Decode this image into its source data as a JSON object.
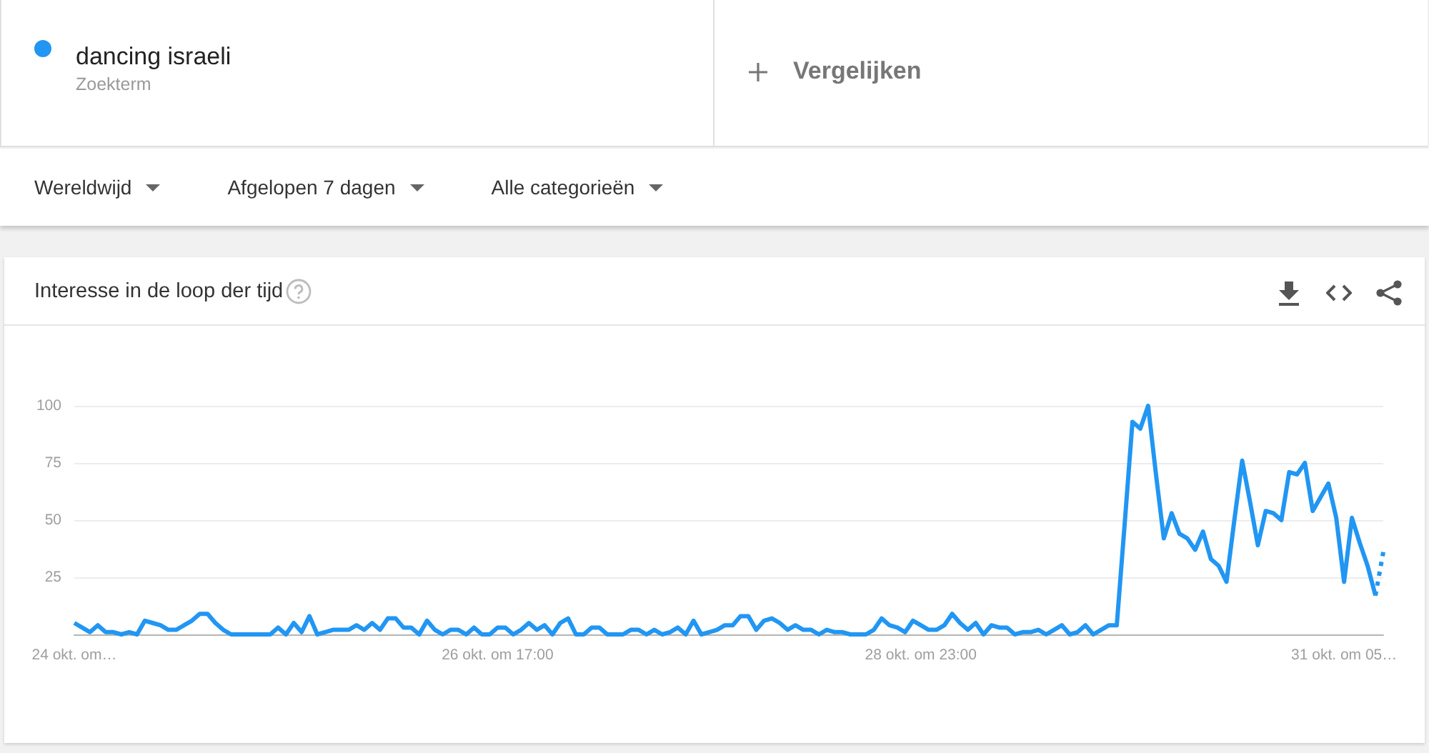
{
  "chart_data": {
    "type": "line",
    "title": "Interesse in de loop der tijd",
    "legend": "top left",
    "grid": "y",
    "marker": "none",
    "line_style": "solid",
    "annotations": [
      "Zoekterm",
      "Vergelijken",
      "Wereldwijd",
      "Afgelopen 7 dagen",
      "Alle categorieën"
    ],
    "ylim": [
      0,
      100
    ],
    "yticks": [
      25,
      50,
      75,
      100
    ],
    "categories": [
      "24 okt. om…",
      null,
      null,
      null,
      null,
      null,
      null,
      null,
      null,
      null,
      null,
      null,
      null,
      null,
      null,
      null,
      null,
      null,
      null,
      null,
      null,
      null,
      null,
      null,
      null,
      null,
      null,
      null,
      null,
      null,
      null,
      null,
      null,
      null,
      null,
      null,
      null,
      null,
      null,
      null,
      null,
      null,
      null,
      null,
      null,
      null,
      null,
      null,
      null,
      null,
      null,
      null,
      null,
      null,
      "26 okt. om 17:00",
      null,
      null,
      null,
      null,
      null,
      null,
      null,
      null,
      null,
      null,
      null,
      null,
      null,
      null,
      null,
      null,
      null,
      null,
      null,
      null,
      null,
      null,
      null,
      null,
      null,
      null,
      null,
      null,
      null,
      null,
      null,
      null,
      null,
      null,
      null,
      null,
      null,
      null,
      null,
      null,
      null,
      null,
      null,
      null,
      null,
      null,
      null,
      null,
      null,
      null,
      null,
      null,
      null,
      "28 okt. om 23:00",
      null,
      null,
      null,
      null,
      null,
      null,
      null,
      null,
      null,
      null,
      null,
      null,
      null,
      null,
      null,
      null,
      null,
      null,
      null,
      null,
      null,
      null,
      null,
      null,
      null,
      null,
      null,
      null,
      null,
      null,
      null,
      null,
      null,
      null,
      null,
      null,
      null,
      null,
      null,
      null,
      null,
      null,
      null,
      null,
      null,
      null,
      null,
      null,
      null,
      null,
      null,
      null,
      null,
      "31 okt. om 05…",
      null,
      null,
      null,
      null,
      null
    ],
    "series": [
      {
        "name": "dancing israeli",
        "color": "#2196f3",
        "values": [
          5,
          3,
          1,
          4,
          1,
          1,
          0,
          1,
          0,
          6,
          5,
          4,
          2,
          2,
          4,
          6,
          9,
          9,
          5,
          2,
          0,
          0,
          0,
          0,
          0,
          0,
          3,
          0,
          5,
          1,
          8,
          0,
          1,
          2,
          2,
          2,
          4,
          2,
          5,
          2,
          7,
          7,
          3,
          3,
          0,
          6,
          2,
          0,
          2,
          2,
          0,
          3,
          0,
          0,
          3,
          3,
          0,
          2,
          5,
          2,
          4,
          0,
          5,
          7,
          0,
          0,
          3,
          3,
          0,
          0,
          0,
          2,
          2,
          0,
          2,
          0,
          1,
          3,
          0,
          6,
          0,
          1,
          2,
          4,
          4,
          8,
          8,
          2,
          6,
          7,
          5,
          2,
          4,
          2,
          2,
          0,
          2,
          1,
          1,
          0,
          0,
          0,
          2,
          7,
          4,
          3,
          1,
          6,
          4,
          2,
          2,
          4,
          9,
          5,
          2,
          5,
          0,
          4,
          3,
          3,
          0,
          1,
          1,
          2,
          0,
          2,
          4,
          0,
          1,
          4,
          0,
          2,
          4,
          4,
          48,
          93,
          90,
          100,
          70,
          42,
          53,
          44,
          42,
          37,
          45,
          33,
          30,
          23,
          50,
          76,
          58,
          39,
          54,
          53,
          50,
          71,
          70,
          75,
          54,
          60,
          66,
          51,
          23,
          51,
          40,
          30,
          17,
          null
        ]
      },
      {
        "color": "#2196f3",
        "line_style": "dotted",
        "values": [
          null,
          null,
          null,
          null,
          null,
          null,
          null,
          null,
          null,
          null,
          null,
          null,
          null,
          null,
          null,
          null,
          null,
          null,
          null,
          null,
          null,
          null,
          null,
          null,
          null,
          null,
          null,
          null,
          null,
          null,
          null,
          null,
          null,
          null,
          null,
          null,
          null,
          null,
          null,
          null,
          null,
          null,
          null,
          null,
          null,
          null,
          null,
          null,
          null,
          null,
          null,
          null,
          null,
          null,
          null,
          null,
          null,
          null,
          null,
          null,
          null,
          null,
          null,
          null,
          null,
          null,
          null,
          null,
          null,
          null,
          null,
          null,
          null,
          null,
          null,
          null,
          null,
          null,
          null,
          null,
          null,
          null,
          null,
          null,
          null,
          null,
          null,
          null,
          null,
          null,
          null,
          null,
          null,
          null,
          null,
          null,
          null,
          null,
          null,
          null,
          null,
          null,
          null,
          null,
          null,
          null,
          null,
          null,
          null,
          null,
          null,
          null,
          null,
          null,
          null,
          null,
          null,
          null,
          null,
          null,
          null,
          null,
          null,
          null,
          null,
          null,
          null,
          null,
          null,
          null,
          null,
          null,
          null,
          null,
          null,
          null,
          null,
          null,
          null,
          null,
          null,
          null,
          null,
          null,
          null,
          null,
          null,
          null,
          null,
          null,
          null,
          null,
          null,
          null,
          null,
          null,
          null,
          null,
          null,
          null,
          null,
          null,
          null,
          null,
          null,
          null,
          17,
          36
        ]
      }
    ]
  }
}
